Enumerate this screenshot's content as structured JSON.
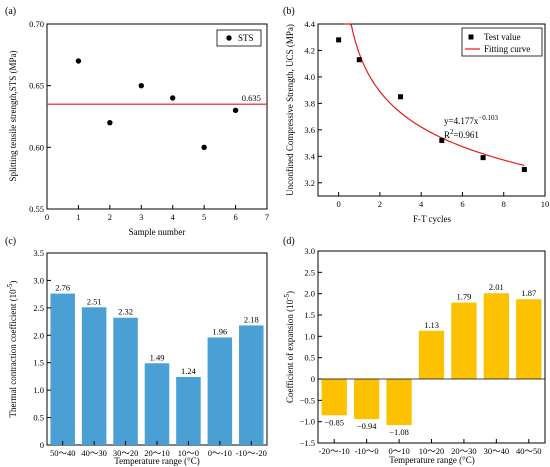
{
  "panels": {
    "a": "(a)",
    "b": "(b)",
    "c": "(c)",
    "d": "(d)"
  },
  "chart_data": [
    {
      "id": "a",
      "type": "scatter",
      "xlabel": "Sample number",
      "ylabel": "Splitting tensile strength,STS (MPa)",
      "xlim": [
        0,
        7
      ],
      "ylim": [
        0.55,
        0.7
      ],
      "xticks": [
        0,
        1,
        2,
        3,
        4,
        5,
        6,
        7
      ],
      "yticks": [
        0.55,
        0.6,
        0.65,
        0.7
      ],
      "ytick_labels": [
        "0.55",
        "0.60",
        "0.65",
        "0.70"
      ],
      "series": [
        {
          "name": "STS",
          "x": [
            1,
            2,
            3,
            4,
            5,
            6
          ],
          "y": [
            0.67,
            0.62,
            0.65,
            0.64,
            0.6,
            0.63
          ],
          "color": "#000000"
        }
      ],
      "reference_line": {
        "y": 0.635,
        "label": "0.635",
        "color": "#e41a1c"
      },
      "legend": "top-right"
    },
    {
      "id": "b",
      "type": "scatter",
      "xlabel": "F-T cycles",
      "ylabel": "Unconfined Compressive Strength, UCS (MPa)",
      "xlim": [
        -1,
        10
      ],
      "ylim": [
        3.1,
        4.4
      ],
      "xticks": [
        0,
        2,
        4,
        6,
        8,
        10
      ],
      "yticks": [
        3.2,
        3.4,
        3.6,
        3.8,
        4.0,
        4.2,
        4.4
      ],
      "ytick_labels": [
        "3.2",
        "3.4",
        "3.6",
        "3.8",
        "4.0",
        "4.2",
        "4.4"
      ],
      "series": [
        {
          "name": "Test value",
          "x": [
            0,
            1,
            3,
            5,
            7,
            9
          ],
          "y": [
            4.28,
            4.13,
            3.85,
            3.52,
            3.39,
            3.3
          ],
          "color": "#000000"
        }
      ],
      "fit": {
        "name": "Fitting curve",
        "a": 4.177,
        "b": -0.103,
        "x_from": 0.25,
        "x_to": 9,
        "color": "#e41a1c"
      },
      "equation": {
        "line1_base": "y=4.177x",
        "line1_exp": "−0.103",
        "line2_base": "R",
        "line2_exp": "2",
        "line2_rest": "=0.961"
      },
      "legend": "top-right"
    },
    {
      "id": "c",
      "type": "bar",
      "xlabel": "Temperature range (°C)",
      "ylabel_base": "Thermal contraction coefficient (10",
      "ylabel_exp": "-5",
      "ylabel_end": ")",
      "ylim": [
        0,
        3.5
      ],
      "yticks": [
        0,
        0.5,
        1.0,
        1.5,
        2.0,
        2.5,
        3.0,
        3.5
      ],
      "ytick_labels": [
        "0",
        "0.5",
        "1.0",
        "1.5",
        "2.0",
        "2.5",
        "3.0",
        "3.5"
      ],
      "categories": [
        "50～40",
        "40～30",
        "30～20",
        "20～10",
        "10～0",
        "0～-10",
        "-10～-20"
      ],
      "values": [
        2.76,
        2.51,
        2.32,
        1.49,
        1.24,
        1.96,
        2.18
      ],
      "labels": [
        "2.76",
        "2.51",
        "2.32",
        "1.49",
        "1.24",
        "1.96",
        "2.18"
      ],
      "color": "#4a9fd5"
    },
    {
      "id": "d",
      "type": "bar",
      "xlabel": "Temperature range (°C)",
      "ylabel_base": "Coefficient of expansion (10",
      "ylabel_exp": "-5",
      "ylabel_end": ")",
      "ylim": [
        -1.5,
        3.0
      ],
      "yticks": [
        -1.5,
        -1.0,
        -0.5,
        0,
        0.5,
        1.0,
        1.5,
        2.0,
        2.5,
        3.0
      ],
      "ytick_labels": [
        "−1.5",
        "−1.0",
        "−0.5",
        "0",
        "0.5",
        "1.0",
        "1.5",
        "2.0",
        "2.5",
        "3.0"
      ],
      "categories": [
        "-20～-10",
        "-10～0",
        "0～10",
        "10～20",
        "20～30",
        "30～40",
        "40～50"
      ],
      "values": [
        -0.85,
        -0.94,
        -1.08,
        1.13,
        1.79,
        2.01,
        1.87
      ],
      "labels": [
        "−0.85",
        "−0.94",
        "−1.08",
        "1.13",
        "1.79",
        "2.01",
        "1.87"
      ],
      "color": "#fcc200"
    }
  ]
}
